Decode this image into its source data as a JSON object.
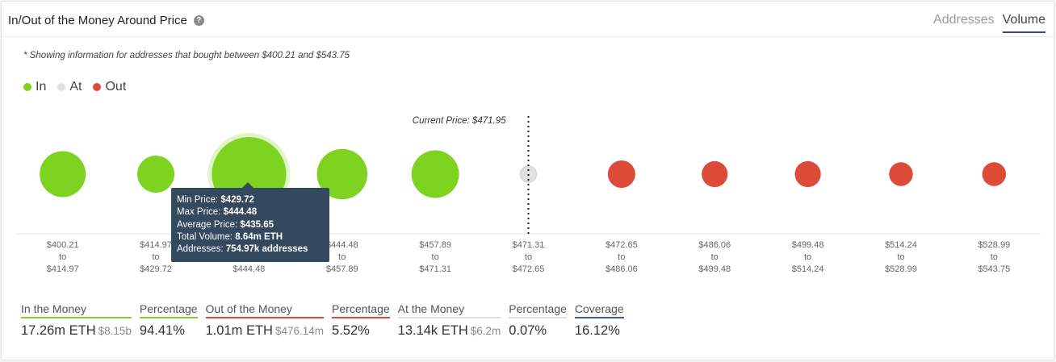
{
  "header": {
    "title": "In/Out of the Money Around Price",
    "help_glyph": "?",
    "tabs": [
      {
        "label": "Addresses",
        "active": false
      },
      {
        "label": "Volume",
        "active": true
      }
    ]
  },
  "note": "* Showing information for addresses that bought between $400.21 and $543.75",
  "legend": [
    {
      "label": "In",
      "color": "#7ed321"
    },
    {
      "label": "At",
      "color": "#e0e0e0"
    },
    {
      "label": "Out",
      "color": "#dc4a38"
    }
  ],
  "chart_data": {
    "type": "scatter",
    "current_price_label": "Current Price: $471.95",
    "current_price": 471.95,
    "colors": {
      "In": "#7ed321",
      "At": "#e0e0e0",
      "Out": "#dc4a38"
    },
    "bins": [
      {
        "range": [
          "$400.21",
          "to",
          "$414.97"
        ],
        "status": "In",
        "size": 0.62
      },
      {
        "range": [
          "$414.97",
          "to",
          "$429.72"
        ],
        "status": "In",
        "size": 0.5
      },
      {
        "range": [
          "$429.72",
          "to",
          "$444.48"
        ],
        "status": "In",
        "size": 1.0,
        "highlight": true
      },
      {
        "range": [
          "$444.48",
          "to",
          "$457.89"
        ],
        "status": "In",
        "size": 0.68
      },
      {
        "range": [
          "$457.89",
          "to",
          "$471.31"
        ],
        "status": "In",
        "size": 0.64
      },
      {
        "range": [
          "$471.31",
          "to",
          "$472.65"
        ],
        "status": "At",
        "size": 0.22
      },
      {
        "range": [
          "$472.65",
          "to",
          "$486.06"
        ],
        "status": "Out",
        "size": 0.37
      },
      {
        "range": [
          "$486.06",
          "to",
          "$499.48"
        ],
        "status": "Out",
        "size": 0.35
      },
      {
        "range": [
          "$499.48",
          "to",
          "$514.24"
        ],
        "status": "Out",
        "size": 0.35
      },
      {
        "range": [
          "$514.24",
          "to",
          "$528.99"
        ],
        "status": "Out",
        "size": 0.32
      },
      {
        "range": [
          "$528.99",
          "to",
          "$543.75"
        ],
        "status": "Out",
        "size": 0.32
      }
    ]
  },
  "tooltip": {
    "min_label": "Min Price:",
    "min_value": "$429.72",
    "max_label": "Max Price:",
    "max_value": "$444.48",
    "avg_label": "Average Price:",
    "avg_value": "$435.65",
    "vol_label": "Total Volume:",
    "vol_value": "8.64m ETH",
    "addr_label": "Addresses:",
    "addr_value": "754.97k addresses"
  },
  "stats": [
    {
      "label": "In the Money",
      "value": "17.26m ETH",
      "sub": "$8.15b",
      "color": "#7ed321"
    },
    {
      "label": "Percentage",
      "value": "94.41%",
      "sub": "",
      "color": "#7ed321"
    },
    {
      "label": "Out of the Money",
      "value": "1.01m ETH",
      "sub": "$476.14m",
      "color": "#dc4a38"
    },
    {
      "label": "Percentage",
      "value": "5.52%",
      "sub": "",
      "color": "#dc4a38"
    },
    {
      "label": "At the Money",
      "value": "13.14k ETH",
      "sub": "$6.2m",
      "color": "#dddddd"
    },
    {
      "label": "Percentage",
      "value": "0.07%",
      "sub": "",
      "color": "#dddddd"
    },
    {
      "label": "Coverage",
      "value": "16.12%",
      "sub": "",
      "color": "#3b5ba9"
    }
  ]
}
